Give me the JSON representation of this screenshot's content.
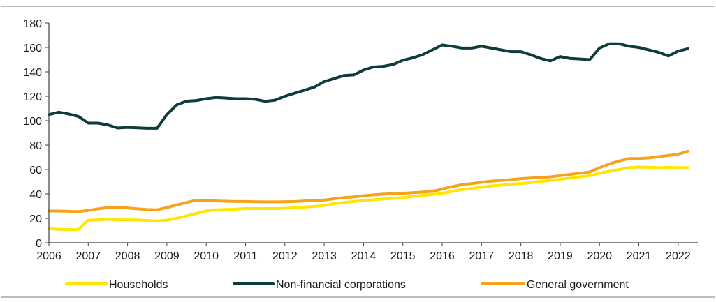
{
  "chart_data": {
    "type": "line",
    "title": "",
    "xlabel": "",
    "ylabel": "",
    "xlim": [
      2006,
      2022.5
    ],
    "ylim": [
      0,
      180
    ],
    "y_ticks": [
      0,
      20,
      40,
      60,
      80,
      100,
      120,
      140,
      160,
      180
    ],
    "x_ticks": [
      2006,
      2007,
      2008,
      2009,
      2010,
      2011,
      2012,
      2013,
      2014,
      2015,
      2016,
      2017,
      2018,
      2019,
      2020,
      2021,
      2022
    ],
    "x_tick_labels": [
      "2006",
      "2007",
      "2008",
      "2009",
      "2010",
      "2011",
      "2012",
      "2013",
      "2014",
      "2015",
      "2016",
      "2017",
      "2018",
      "2019",
      "2020",
      "2021",
      "2022"
    ],
    "y_tick_labels": [
      "0",
      "20",
      "40",
      "60",
      "80",
      "100",
      "120",
      "140",
      "160",
      "180"
    ],
    "grid": false,
    "legend_position": "bottom",
    "x": [
      2006.0,
      2006.25,
      2006.5,
      2006.75,
      2007.0,
      2007.25,
      2007.5,
      2007.75,
      2008.0,
      2008.25,
      2008.5,
      2008.75,
      2009.0,
      2009.25,
      2009.5,
      2009.75,
      2010.0,
      2010.25,
      2010.5,
      2010.75,
      2011.0,
      2011.25,
      2011.5,
      2011.75,
      2012.0,
      2012.25,
      2012.5,
      2012.75,
      2013.0,
      2013.25,
      2013.5,
      2013.75,
      2014.0,
      2014.25,
      2014.5,
      2014.75,
      2015.0,
      2015.25,
      2015.5,
      2015.75,
      2016.0,
      2016.25,
      2016.5,
      2016.75,
      2017.0,
      2017.25,
      2017.5,
      2017.75,
      2018.0,
      2018.25,
      2018.5,
      2018.75,
      2019.0,
      2019.25,
      2019.5,
      2019.75,
      2020.0,
      2020.25,
      2020.5,
      2020.75,
      2021.0,
      2021.25,
      2021.5,
      2021.75,
      2022.0,
      2022.25
    ],
    "series": [
      {
        "name": "Households",
        "color": "#ffe600",
        "values": [
          11.5,
          11.0,
          10.8,
          10.8,
          18.5,
          18.8,
          19.2,
          18.8,
          18.8,
          18.6,
          18.3,
          17.8,
          18.5,
          20.0,
          22.0,
          24.0,
          26.0,
          27.0,
          27.3,
          27.5,
          28.0,
          28.0,
          28.0,
          28.0,
          28.2,
          28.6,
          29.2,
          29.8,
          30.5,
          32.0,
          33.0,
          33.8,
          34.5,
          35.2,
          35.8,
          36.3,
          37.0,
          38.0,
          38.8,
          39.5,
          40.5,
          42.0,
          43.5,
          44.5,
          45.5,
          46.5,
          47.2,
          48.0,
          48.5,
          49.2,
          50.2,
          51.0,
          52.0,
          53.0,
          54.0,
          55.0,
          57.0,
          58.5,
          60.0,
          61.5,
          62.0,
          61.8,
          61.5,
          61.7,
          61.6,
          61.5
        ]
      },
      {
        "name": "Non-financial corporations",
        "color": "#0e3b3b",
        "values": [
          105.0,
          107.0,
          105.5,
          103.5,
          98.0,
          98.0,
          96.5,
          94.0,
          94.5,
          94.2,
          93.8,
          93.8,
          105.0,
          113.0,
          116.0,
          116.5,
          118.0,
          119.0,
          118.5,
          118.0,
          118.0,
          117.5,
          115.8,
          116.8,
          120.0,
          122.5,
          125.0,
          127.5,
          132.0,
          134.5,
          137.0,
          137.5,
          141.5,
          144.0,
          144.5,
          146.0,
          149.5,
          151.5,
          154.0,
          158.0,
          162.0,
          161.0,
          159.5,
          159.5,
          161.0,
          159.5,
          158.0,
          156.5,
          156.5,
          154.0,
          151.0,
          149.0,
          152.5,
          151.0,
          150.5,
          150.0,
          159.5,
          163.0,
          163.0,
          161.0,
          160.0,
          158.0,
          156.0,
          153.0,
          157.0,
          159.0
        ]
      },
      {
        "name": "General government",
        "color": "#f7a21b",
        "values": [
          26.0,
          26.0,
          25.8,
          25.5,
          26.5,
          27.8,
          28.8,
          29.2,
          28.5,
          27.8,
          27.2,
          27.0,
          28.8,
          31.0,
          33.0,
          34.8,
          34.5,
          34.2,
          34.0,
          33.8,
          33.8,
          33.6,
          33.5,
          33.5,
          33.6,
          33.8,
          34.2,
          34.5,
          35.0,
          36.0,
          37.0,
          37.5,
          38.5,
          39.2,
          39.8,
          40.2,
          40.5,
          41.0,
          41.5,
          42.0,
          44.0,
          46.0,
          47.5,
          48.5,
          49.5,
          50.5,
          51.0,
          51.8,
          52.5,
          53.0,
          53.5,
          54.0,
          55.0,
          56.0,
          57.0,
          58.0,
          61.5,
          64.5,
          67.0,
          69.0,
          69.0,
          69.5,
          70.5,
          71.5,
          72.5,
          75.0
        ]
      }
    ]
  }
}
